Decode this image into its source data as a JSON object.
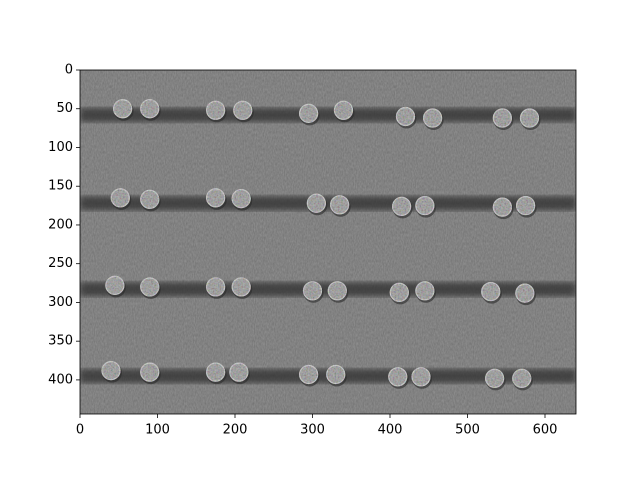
{
  "chart_data": {
    "type": "image",
    "xlim": [
      0,
      640
    ],
    "ylim": [
      444,
      0
    ],
    "xticks": [
      0,
      100,
      200,
      300,
      400,
      500,
      600
    ],
    "yticks": [
      0,
      50,
      100,
      150,
      200,
      250,
      300,
      350,
      400
    ]
  }
}
